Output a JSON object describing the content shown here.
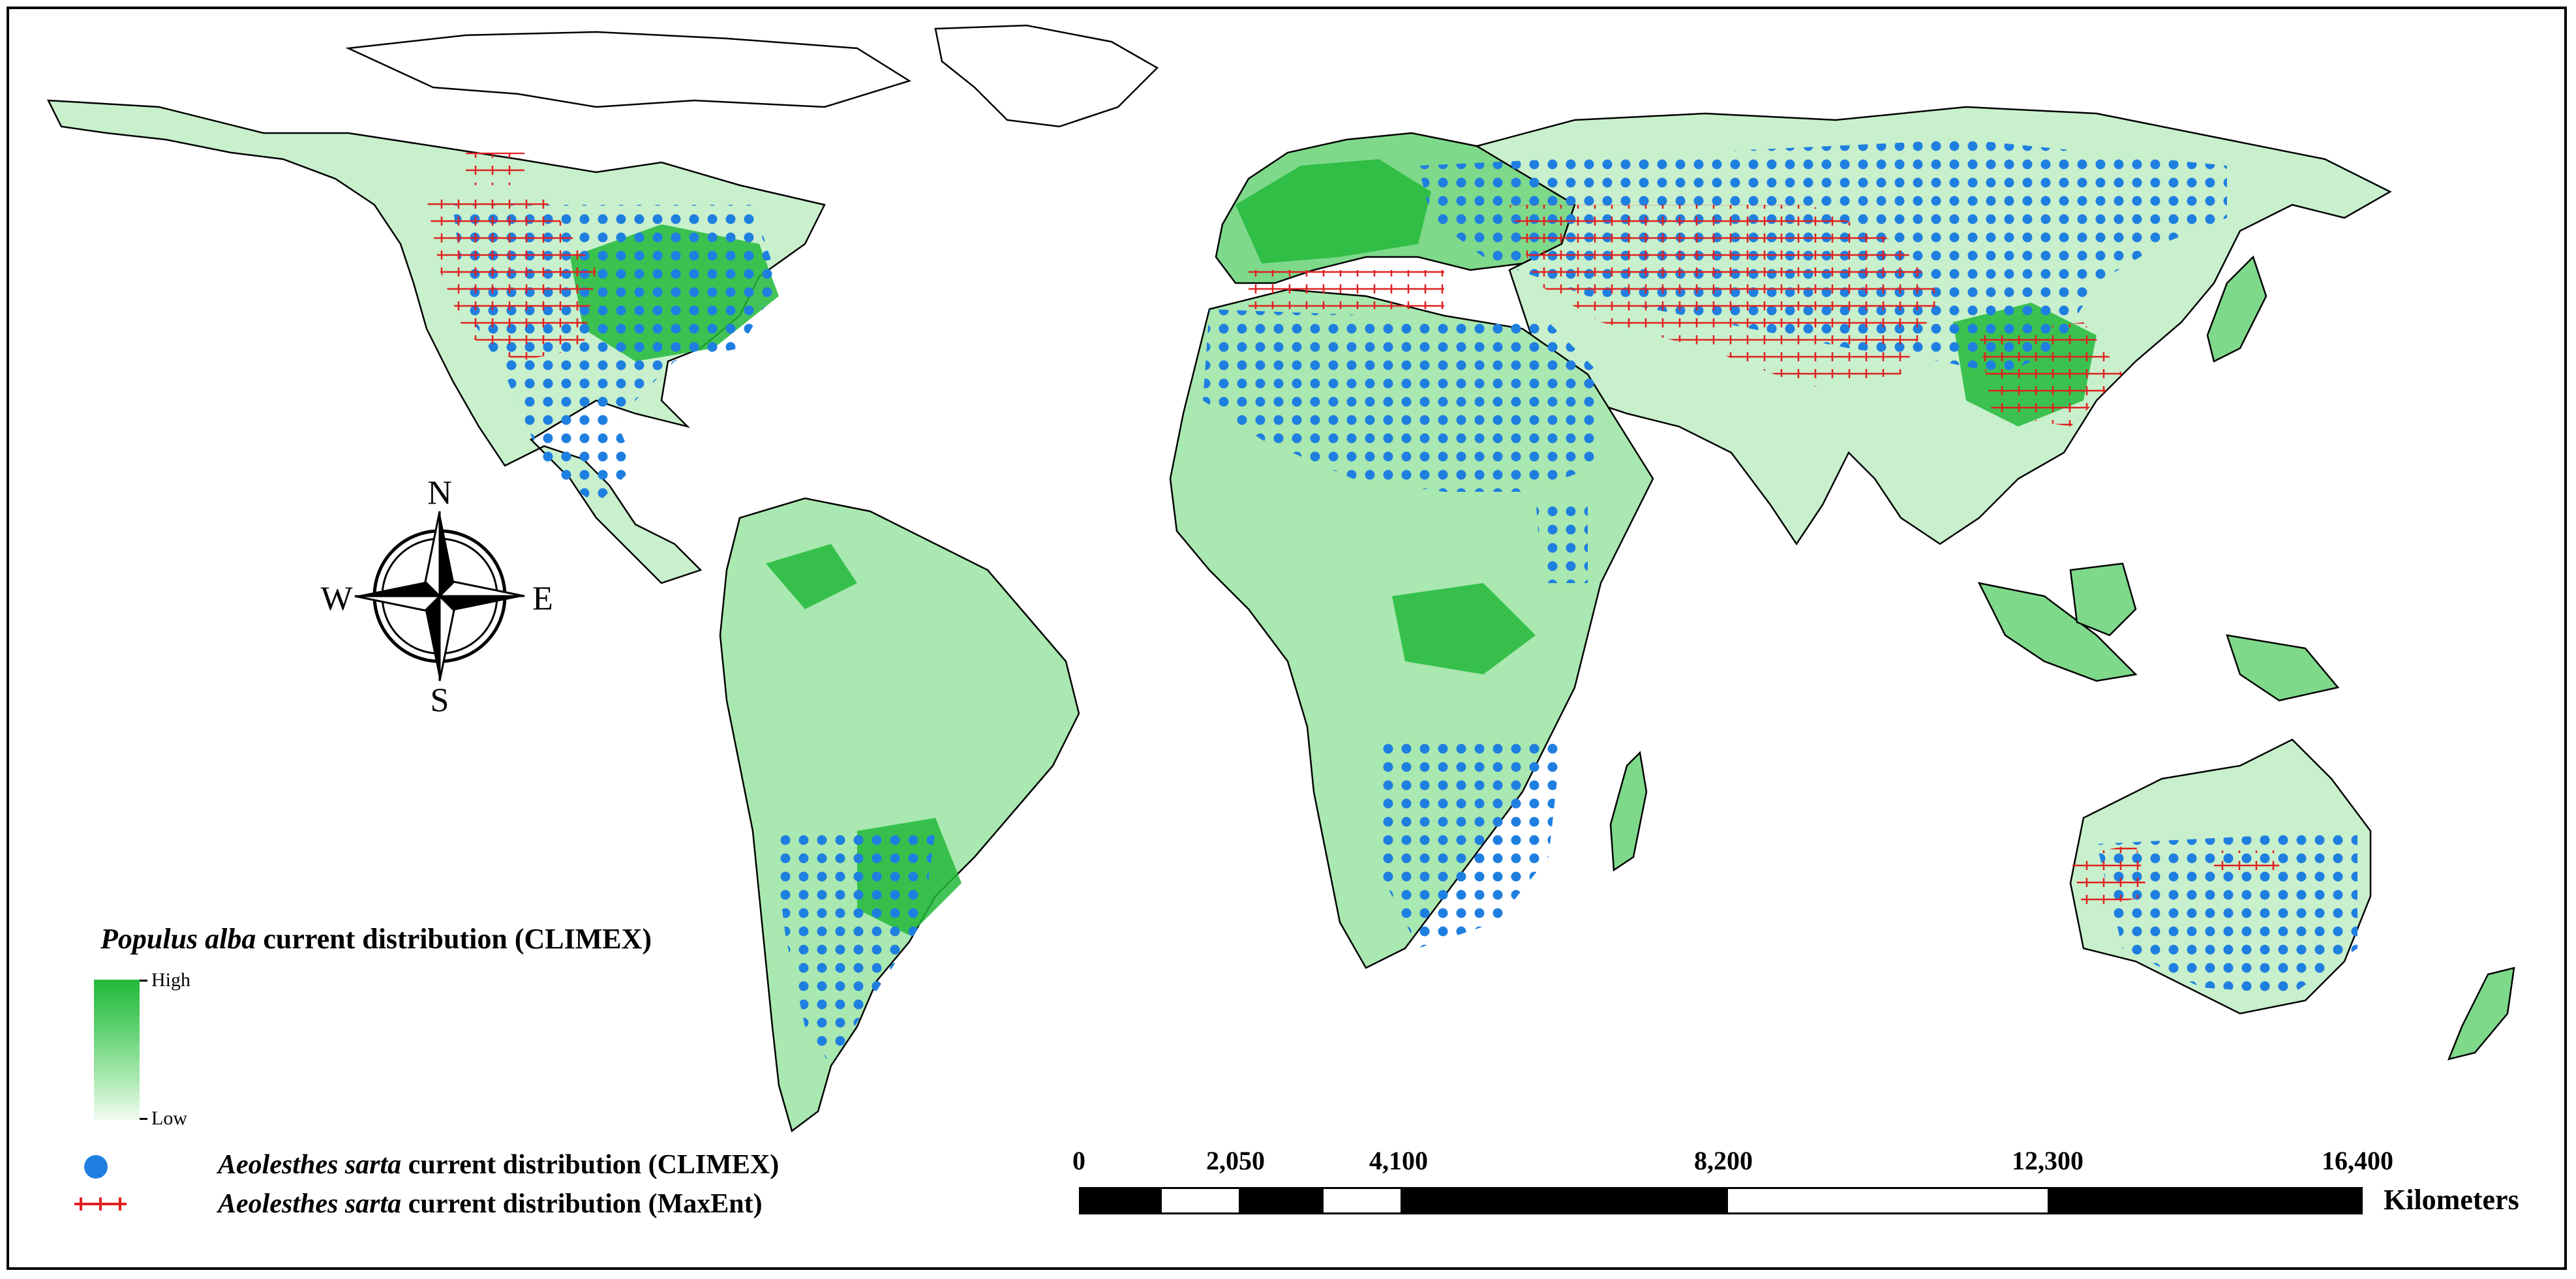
{
  "legend": {
    "climex_title_species": "Populus alba",
    "climex_title_rest": " current distribution (CLIMEX)",
    "ramp_high": "High",
    "ramp_low": "Low",
    "ramp_colors": [
      "#22b83a",
      "#5fd070",
      "#a9e8b0",
      "#f2fcf3"
    ],
    "climex_points_species": "Aeolesthes sarta",
    "climex_points_rest": " current distribution (CLIMEX)",
    "climex_points_color": "#1f7fe0",
    "maxent_species": "Aeolesthes sarta",
    "maxent_rest": " current distribution (MaxEnt)",
    "maxent_color": "#e02020"
  },
  "compass": {
    "north": "N",
    "south": "S",
    "east": "E",
    "west": "W"
  },
  "scale_bar": {
    "labels": [
      "0",
      "2,050",
      "4,100",
      "8,200",
      "12,300",
      "16,400"
    ],
    "unit": "Kilometers"
  },
  "colors": {
    "suitability_high": "#22b83a",
    "suitability_mid": "#7ed98a",
    "suitability_low": "#c8f0cc",
    "land_outline": "#000000",
    "ocean": "#ffffff"
  }
}
